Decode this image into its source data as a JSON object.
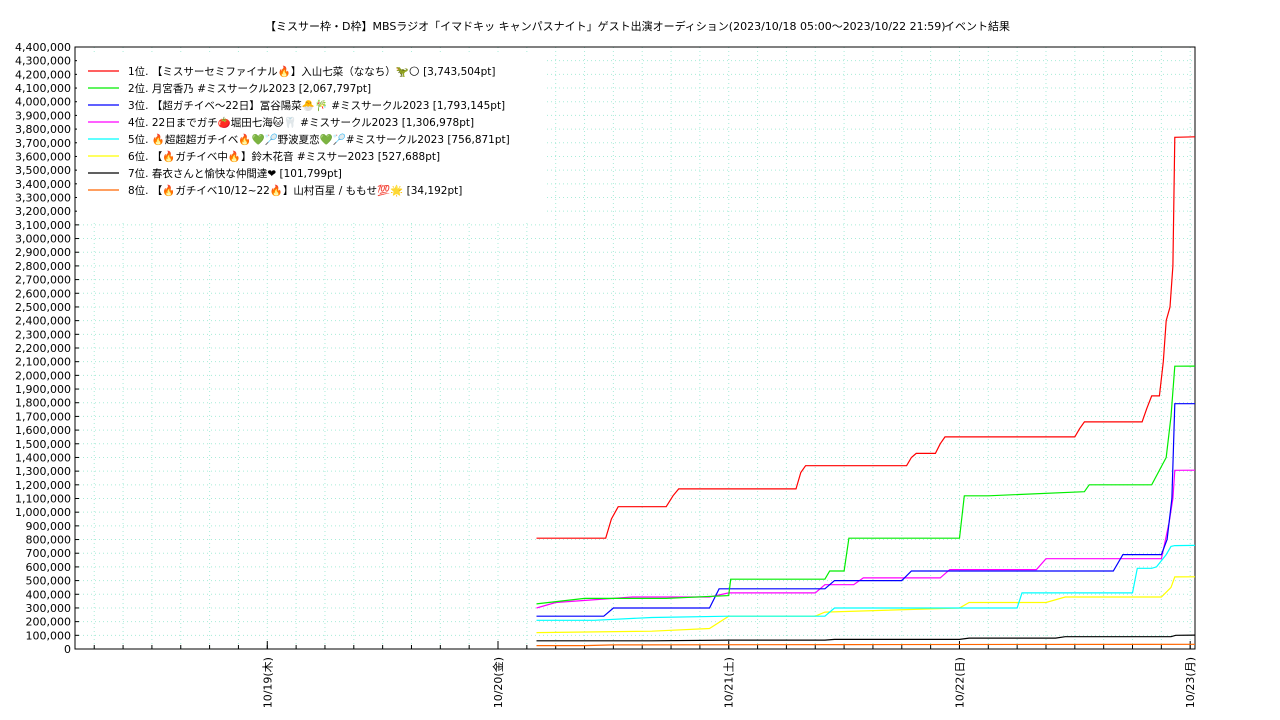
{
  "chart_data": {
    "type": "line",
    "title": "【ミスサー枠・D枠】MBSラジオ「イマドキッ キャンパスナイト」ゲスト出演オーディション(2023/10/18 05:00〜2023/10/22 21:59)",
    "subtitle": "イベント結果",
    "xlabel": "",
    "ylabel": "",
    "ylim": [
      0,
      4400000
    ],
    "ytick_step": 100000,
    "xlim_hours": [
      -20,
      96.5
    ],
    "x_ticks": [
      {
        "label": "10/19(木)",
        "hour": 0
      },
      {
        "label": "10/20(金)",
        "hour": 24
      },
      {
        "label": "10/21(土)",
        "hour": 48
      },
      {
        "label": "10/22(日)",
        "hour": 72
      },
      {
        "label": "10/23(月)",
        "hour": 96
      }
    ],
    "grid": true,
    "legend_position": "top-left",
    "series": [
      {
        "name": "1位. 【ミスサーセミファイナル🔥】入山七菜（ななち）🦖🌕 [3,743,504pt]",
        "color": "#ff0000",
        "x": [
          28,
          35.2,
          35.8,
          36.5,
          41.5,
          42.2,
          42.8,
          55,
          55.5,
          56,
          66.5,
          67,
          67.5,
          69.5,
          70,
          70.5,
          84,
          84.5,
          85,
          91,
          91.5,
          92,
          92.8,
          93.2,
          93.5,
          93.9,
          94.2,
          94.4,
          96.5
        ],
        "y": [
          810000,
          810000,
          950000,
          1040000,
          1040000,
          1120000,
          1170000,
          1170000,
          1290000,
          1340000,
          1340000,
          1400000,
          1430000,
          1430000,
          1500000,
          1550000,
          1550000,
          1610000,
          1660000,
          1660000,
          1760000,
          1850000,
          1850000,
          2100000,
          2400000,
          2500000,
          2800000,
          3740000,
          3743504
        ]
      },
      {
        "name": "2位. 月宮香乃 #ミスサークル2023 [2,067,797pt]",
        "color": "#00ee00",
        "x": [
          28,
          33,
          41.5,
          48,
          48.2,
          58,
          58.5,
          60,
          60.5,
          72,
          72.5,
          75,
          85,
          85.5,
          92,
          93.5,
          94,
          94.4,
          96.5
        ],
        "y": [
          330000,
          370000,
          370000,
          390000,
          510000,
          510000,
          570000,
          570000,
          810000,
          810000,
          1120000,
          1120000,
          1150000,
          1200000,
          1200000,
          1400000,
          1700000,
          2067000,
          2067797
        ]
      },
      {
        "name": "3位. 【超ガチイベ〜22日】冨谷陽菜🐣🎋 #ミスサークル2023 [1,793,145pt]",
        "color": "#0000ff",
        "x": [
          28,
          35,
          36,
          46,
          47,
          58,
          59,
          66,
          67,
          88,
          89,
          93,
          93.6,
          94.1,
          94.4,
          96.5
        ],
        "y": [
          240000,
          240000,
          300000,
          300000,
          440000,
          440000,
          500000,
          500000,
          570000,
          570000,
          690000,
          690000,
          800000,
          1100000,
          1793000,
          1793145
        ]
      },
      {
        "name": "4位. 22日までガチ🍅堀田七海🐱🦷 #ミスサークル2023 [1,306,978pt]",
        "color": "#ff00ff",
        "x": [
          28,
          30,
          38,
          46,
          48,
          57,
          58,
          61,
          62,
          70,
          71,
          80,
          81,
          93,
          93.8,
          94.2,
          94.4,
          96.5
        ],
        "y": [
          300000,
          340000,
          380000,
          380000,
          410000,
          410000,
          470000,
          470000,
          520000,
          520000,
          580000,
          580000,
          660000,
          660000,
          920000,
          1100000,
          1306000,
          1306978
        ]
      },
      {
        "name": "5位. 🔥超超超ガチイベ🔥💚🏸野波夏恋💚🏸#ミスサークル2023 [756,871pt]",
        "color": "#00ffff",
        "x": [
          28,
          34,
          40,
          48,
          58,
          59,
          72,
          78,
          78.5,
          90,
          90.5,
          92,
          92.5,
          93.5,
          94,
          94.4,
          96.5
        ],
        "y": [
          210000,
          210000,
          230000,
          240000,
          240000,
          300000,
          300000,
          300000,
          410000,
          410000,
          590000,
          590000,
          600000,
          690000,
          750000,
          756000,
          756871
        ]
      },
      {
        "name": "6位. 【🔥ガチイベ中🔥】鈴木花音 #ミスサー2023 [527,688pt]",
        "color": "#ffff00",
        "x": [
          28,
          40,
          46,
          48,
          57,
          58,
          72,
          73,
          81,
          83,
          93,
          94,
          94.4,
          96.5
        ],
        "y": [
          120000,
          130000,
          150000,
          240000,
          240000,
          270000,
          300000,
          340000,
          340000,
          380000,
          380000,
          450000,
          527000,
          527688
        ]
      },
      {
        "name": "7位. 春衣さんと愉快な仲間達❤ [101,799pt]",
        "color": "#000000",
        "x": [
          28,
          40,
          48,
          58,
          59,
          72,
          73,
          82,
          83,
          94,
          94.5,
          96.5
        ],
        "y": [
          60000,
          60000,
          65000,
          65000,
          70000,
          70000,
          80000,
          80000,
          90000,
          90000,
          100000,
          101799
        ]
      },
      {
        "name": "8位. 【🔥ガチイベ10/12~22🔥】山村百星 / ももせ💯🌟 [34,192pt]",
        "color": "#ff6600",
        "x": [
          28,
          33,
          36,
          60,
          96.5
        ],
        "y": [
          25000,
          25000,
          30000,
          32000,
          34192
        ]
      }
    ]
  }
}
